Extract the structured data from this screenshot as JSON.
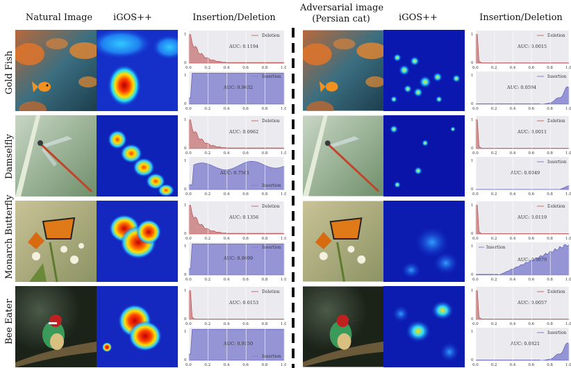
{
  "headers": {
    "natural": "Natural Image",
    "igos_left": "iGOS++",
    "insdel_left": "Insertion/Deletion",
    "adversarial_line1": "Adversarial image",
    "adversarial_line2": "(Persian cat)",
    "igos_right": "iGOS++",
    "insdel_right": "Insertion/Deletion"
  },
  "rows": [
    {
      "label": "Gold Fish",
      "left": {
        "deletion_auc": "AUC: 0.1194",
        "insertion_auc": "AUC: 0.9632"
      },
      "right": {
        "deletion_auc": "AUC: 0.0015",
        "insertion_auc": "AUC: 0.0594"
      }
    },
    {
      "label": "Damselfly",
      "left": {
        "deletion_auc": "AUC: 0.0962",
        "insertion_auc": "AUC: 0.7561"
      },
      "right": {
        "deletion_auc": "AUC: 0.0011",
        "insertion_auc": "AUC: 0.0049"
      }
    },
    {
      "label": "Monarch Butterfly",
      "left": {
        "deletion_auc": "AUC: 0.1356",
        "insertion_auc": "AUC: 0.9699"
      },
      "right": {
        "deletion_auc": "AUC: 0.0119",
        "insertion_auc": "AUC: 0.3079"
      }
    },
    {
      "label": "Bee Eater",
      "left": {
        "deletion_auc": "AUC: 0.0153",
        "insertion_auc": "AUC: 0.9150"
      },
      "right": {
        "deletion_auc": "AUC: 0.0057",
        "insertion_auc": "AUC: 0.0821"
      }
    }
  ],
  "plot_labels": {
    "deletion": "Deletion",
    "insertion": "Insertion"
  },
  "axis": {
    "x_ticks": [
      "0.0",
      "0.2",
      "0.4",
      "0.6",
      "0.8",
      "1.0"
    ],
    "y_ticks": [
      "0",
      "1"
    ],
    "x_range": [
      0,
      1
    ],
    "y_range": [
      0,
      1
    ]
  },
  "colors": {
    "deletion": "#c46b6b",
    "insertion": "#7f7fd0",
    "heat_low": "#0a1ea8",
    "heat_high": "#c00000"
  }
}
